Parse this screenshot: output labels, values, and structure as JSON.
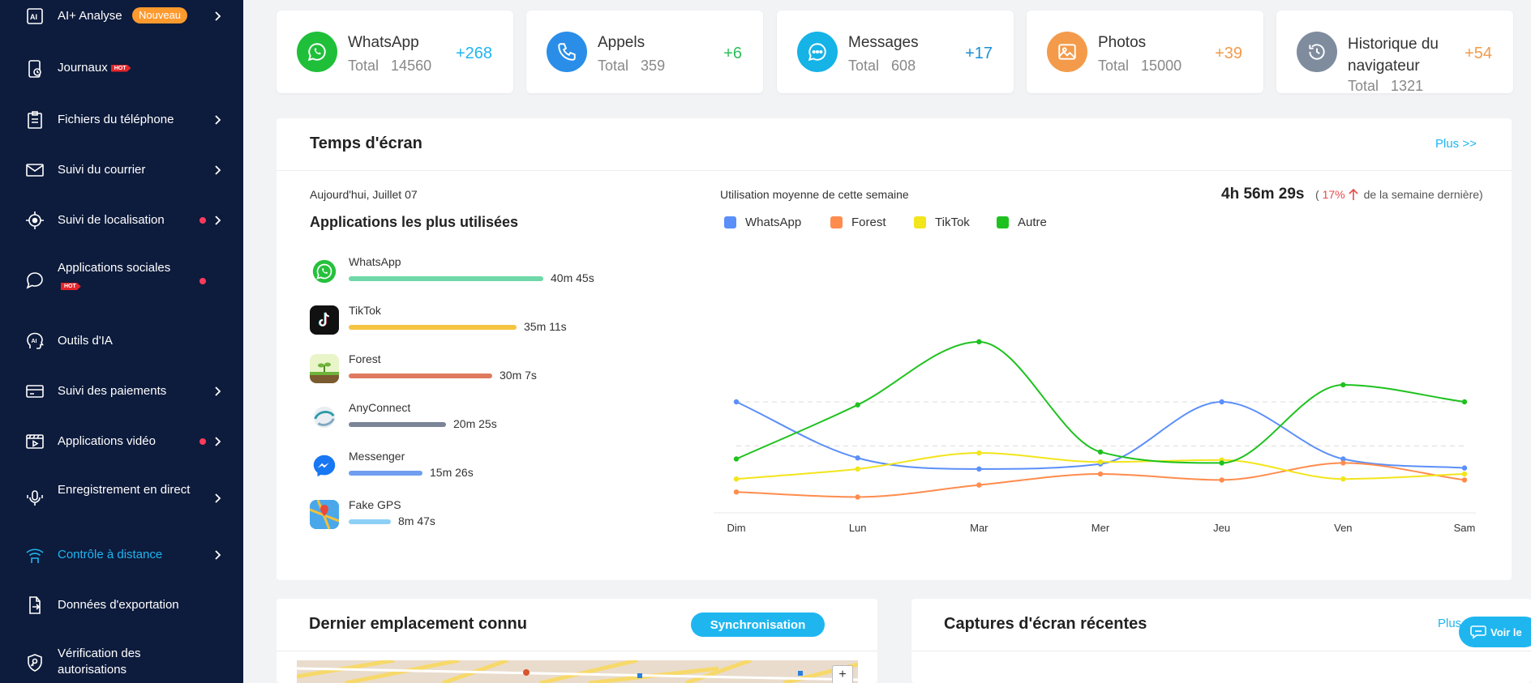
{
  "sidebar": {
    "items": [
      {
        "label": "AI+ Analyse",
        "badge": "Nouveau",
        "icon": "ai-chip-icon"
      },
      {
        "label": "Journaux",
        "hot": "HOT",
        "icon": "log-phone-icon"
      },
      {
        "label": "Fichiers du téléphone",
        "icon": "clipboard-icon"
      },
      {
        "label": "Suivi du courrier",
        "icon": "mail-icon"
      },
      {
        "label": "Suivi de localisation",
        "icon": "target-icon"
      },
      {
        "label": "Applications sociales",
        "hot": "HOT",
        "icon": "chat-bubble-icon"
      },
      {
        "label": "Outils d'IA",
        "icon": "ai-head-icon"
      },
      {
        "label": "Suivi des paiements",
        "icon": "card-icon"
      },
      {
        "label": "Applications vidéo",
        "icon": "video-icon"
      },
      {
        "label": "Enregistrement en direct",
        "icon": "microphone-icon"
      },
      {
        "label": "Contrôle à distance",
        "icon": "remote-signal-icon"
      },
      {
        "label": "Données d'exportation",
        "icon": "export-icon"
      },
      {
        "label": "Vérification des autorisations",
        "icon": "shield-key-icon"
      }
    ]
  },
  "stats": [
    {
      "title": "WhatsApp",
      "total_label": "Total",
      "total": "14560",
      "delta": "+268",
      "color": "#1fbf3a",
      "delta_color": "#1fb6f0",
      "icon": "whatsapp-icon"
    },
    {
      "title": "Appels",
      "total_label": "Total",
      "total": "359",
      "delta": "+6",
      "color": "#2a8ee8",
      "delta_color": "#2ec05b",
      "icon": "phone-icon"
    },
    {
      "title": "Messages",
      "total_label": "Total",
      "total": "608",
      "delta": "+17",
      "color": "#16b3e6",
      "delta_color": "#1a8fd6",
      "icon": "message-icon"
    },
    {
      "title": "Photos",
      "total_label": "Total",
      "total": "15000",
      "delta": "+39",
      "color": "#f39b4b",
      "delta_color": "#f39b4b",
      "icon": "image-icon"
    },
    {
      "title_line1": "Historique du",
      "title_line2": "navigateur",
      "total_label": "Total",
      "total": "1321",
      "delta": "+54",
      "color": "#7f8c9e",
      "delta_color": "#f39b4b",
      "icon": "history-icon"
    }
  ],
  "screen_time": {
    "title": "Temps d'écran",
    "more": "Plus >>",
    "date": "Aujourd'hui, Juillet 07",
    "apps_title": "Applications les plus utilisées",
    "avg_label": "Utilisation moyenne de cette semaine",
    "total_time": "4h 56m 29s",
    "paren_open": "(",
    "pct": "17%",
    "compare": "de la semaine dernière)",
    "apps": [
      {
        "name": "WhatsApp",
        "time": "40m 45s",
        "color": "#6fd8a8",
        "fraction": 1.0,
        "icon": "whatsapp-icon"
      },
      {
        "name": "TikTok",
        "time": "35m 11s",
        "color": "#f5c542",
        "fraction": 0.863,
        "icon": "tiktok-icon"
      },
      {
        "name": "Forest",
        "time": "30m 7s",
        "color": "#e07a5f",
        "fraction": 0.739,
        "icon": "forest-icon"
      },
      {
        "name": "AnyConnect",
        "time": "20m 25s",
        "color": "#7b8597",
        "fraction": 0.501,
        "icon": "anyconnect-icon"
      },
      {
        "name": "Messenger",
        "time": "15m 26s",
        "color": "#6f9ef0",
        "fraction": 0.379,
        "icon": "messenger-icon"
      },
      {
        "name": "Fake GPS",
        "time": "8m 47s",
        "color": "#8ed0f5",
        "fraction": 0.216,
        "icon": "fake-gps-icon"
      }
    ]
  },
  "chart_data": {
    "type": "line",
    "categories": [
      "Dim",
      "Lun",
      "Mar",
      "Mer",
      "Jeu",
      "Ven",
      "Sam"
    ],
    "ylim": [
      0,
      220
    ],
    "grid": "dashed horizontal",
    "legend": "top-left",
    "series": [
      {
        "name": "WhatsApp",
        "color": "#5b8ff9",
        "values": [
          110,
          54,
          43,
          48,
          110,
          53,
          44
        ]
      },
      {
        "name": "Forest",
        "color": "#ff8c4d",
        "values": [
          20,
          15,
          27,
          38,
          32,
          49,
          32
        ]
      },
      {
        "name": "TikTok",
        "color": "#f2e51b",
        "values": [
          33,
          43,
          59,
          50,
          52,
          33,
          38
        ]
      },
      {
        "name": "Autre",
        "color": "#1ec21e",
        "values": [
          53,
          107,
          170,
          60,
          49,
          127,
          110
        ]
      }
    ]
  },
  "location": {
    "title": "Dernier emplacement connu",
    "sync": "Synchronisation"
  },
  "screenshots": {
    "title": "Captures d'écran récentes",
    "more": "Plus",
    "chat_btn": "Voir le"
  }
}
